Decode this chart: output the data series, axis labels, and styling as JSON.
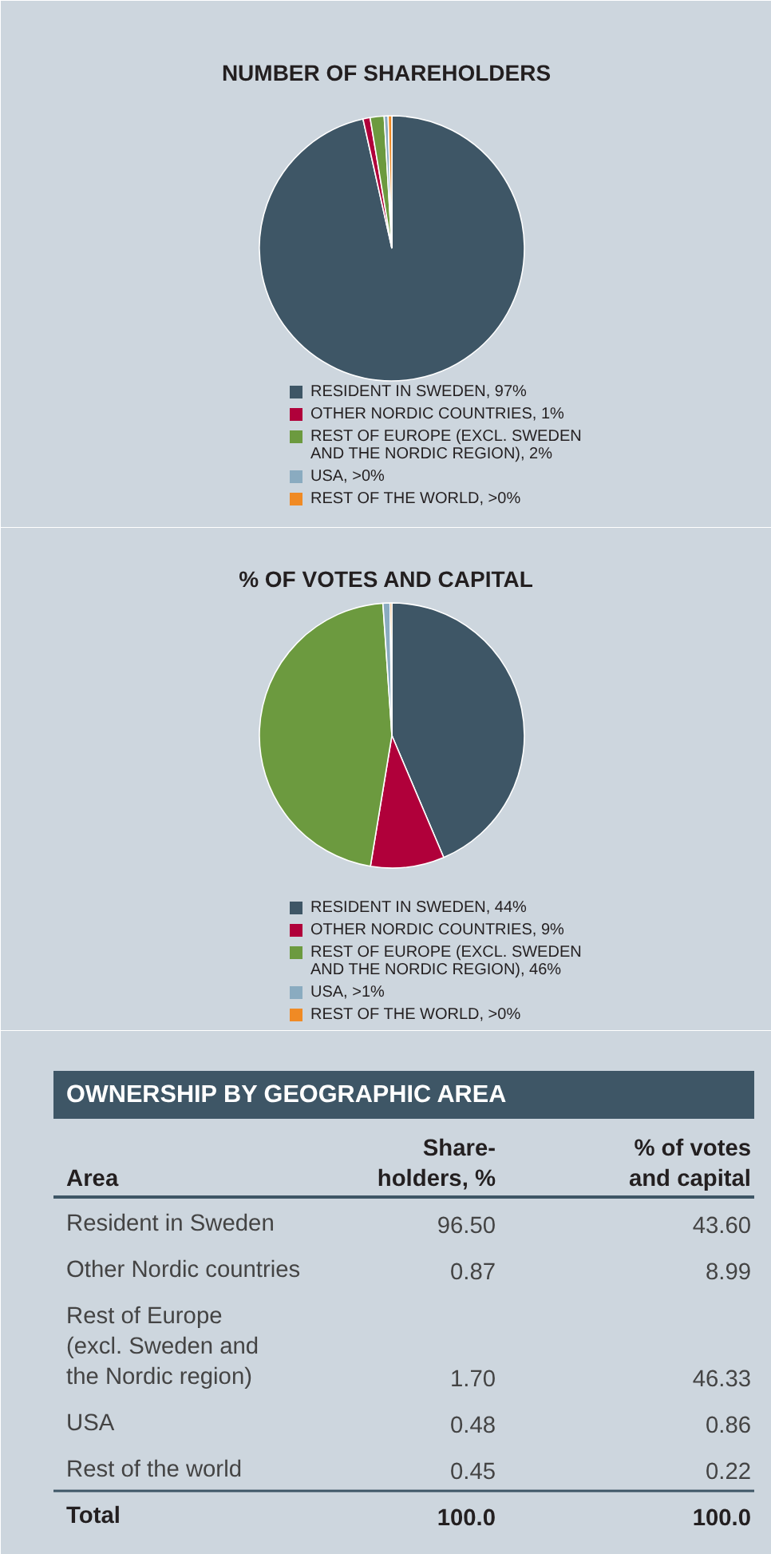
{
  "chart_data": [
    {
      "type": "pie",
      "title": "NUMBER OF SHAREHOLDERS",
      "categories": [
        "RESIDENT IN SWEDEN, 97%",
        "OTHER NORDIC COUNTRIES, 1%",
        "REST OF EUROPE (EXCL. SWEDEN AND THE NORDIC REGION), 2%",
        "USA, >0%",
        "REST OF THE WORLD, >0%"
      ],
      "values": [
        96.5,
        0.87,
        1.7,
        0.48,
        0.45
      ],
      "colors": [
        "#3e5666",
        "#b0003a",
        "#6c9a3f",
        "#8aabc0",
        "#f08a24"
      ],
      "legend": "bottom"
    },
    {
      "type": "pie",
      "title": "% OF VOTES AND CAPITAL",
      "categories": [
        "RESIDENT IN SWEDEN, 44%",
        "OTHER NORDIC COUNTRIES, 9%",
        "REST OF EUROPE (EXCL. SWEDEN AND THE NORDIC REGION), 46%",
        "USA, >1%",
        "REST OF THE WORLD, >0%"
      ],
      "values": [
        43.6,
        8.99,
        46.33,
        0.86,
        0.22
      ],
      "colors": [
        "#3e5666",
        "#b0003a",
        "#6c9a3f",
        "#8aabc0",
        "#f08a24"
      ],
      "legend": "bottom"
    },
    {
      "type": "other",
      "title": "OWNERSHIP BY GEOGRAPHIC AREA",
      "xlabel": "Area",
      "categories": [
        "Resident in Sweden",
        "Other Nordic countries",
        "Rest of Europe (excl. Sweden and the Nordic region)",
        "USA",
        "Rest of the world"
      ],
      "series": [
        {
          "name": "Share-holders, %",
          "values": [
            96.5,
            0.87,
            1.7,
            0.48,
            0.45
          ],
          "value_labels": [
            "96.50",
            "0.87",
            "1.70",
            "0.48",
            "0.45"
          ]
        },
        {
          "name": "% of votes and capital",
          "values": [
            43.6,
            8.99,
            46.33,
            0.86,
            0.22
          ],
          "value_labels": [
            "43.60",
            "8.99",
            "46.33",
            "0.86",
            "0.22"
          ]
        }
      ],
      "totals": [
        "100.0",
        "100.0"
      ],
      "annotations": [
        "Total"
      ]
    }
  ]
}
